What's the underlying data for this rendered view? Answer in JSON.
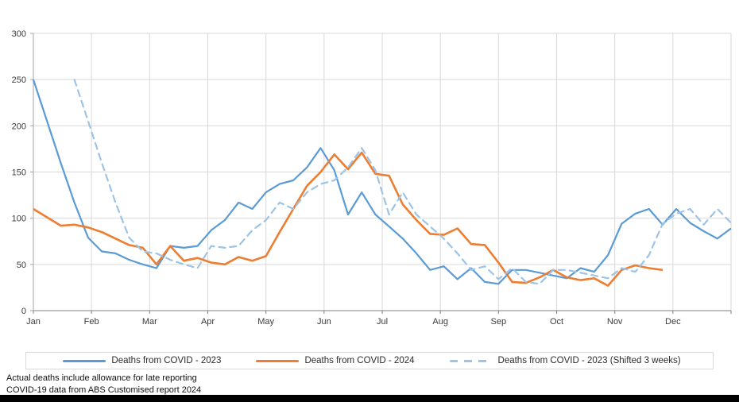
{
  "chart": {
    "footer_lines": [
      "Actual deaths include allowance for late reporting",
      "COVID-19 data from ABS Customised report 2024"
    ]
  },
  "chart_data": {
    "type": "line",
    "title": "",
    "xlabel": "",
    "ylabel": "",
    "x_axis": {
      "tick_labels": [
        "Jan",
        "Feb",
        "Mar",
        "Apr",
        "May",
        "Jun",
        "Jul",
        "Aug",
        "Sep",
        "Oct",
        "Nov",
        "Dec"
      ],
      "unit": "week-of-year",
      "weeks": 52
    },
    "y_axis": {
      "min": 0,
      "max": 300,
      "tick_step": 50,
      "tick_labels": [
        "0",
        "50",
        "100",
        "150",
        "200",
        "250",
        "300"
      ]
    },
    "grid": true,
    "legend_position": "bottom",
    "colors": {
      "series_2023": "#5B9BD5",
      "series_2024": "#ED7D31",
      "series_shifted": "#9DC3E6",
      "gridline": "#D9D9D9",
      "x_axis_line": "#808080",
      "y_axis_line": "#A6A6A6"
    },
    "series": [
      {
        "name": "Deaths from COVID - 2023",
        "style": "solid",
        "color": "#5B9BD5",
        "x_offset_weeks": 0,
        "values": [
          250,
          205,
          160,
          117,
          79,
          64,
          62,
          55,
          50,
          46,
          70,
          68,
          70,
          87,
          98,
          117,
          110,
          128,
          137,
          141,
          155,
          176,
          152,
          104,
          128,
          104,
          91,
          78,
          62,
          44,
          48,
          34,
          46,
          31,
          29,
          44,
          44,
          41,
          38,
          35,
          46,
          42,
          60,
          94,
          105,
          110,
          93,
          110,
          95,
          86,
          78,
          89
        ]
      },
      {
        "name": "Deaths from COVID - 2024",
        "style": "solid",
        "color": "#ED7D31",
        "x_offset_weeks": 0,
        "values": [
          110,
          101,
          92,
          93,
          90,
          85,
          78,
          71,
          68,
          50,
          70,
          54,
          57,
          52,
          50,
          58,
          54,
          59,
          85,
          110,
          135,
          150,
          169,
          153,
          171,
          148,
          146,
          115,
          98,
          83,
          82,
          89,
          72,
          71,
          52,
          31,
          30,
          36,
          44,
          36,
          33,
          35,
          27,
          44,
          49,
          46,
          44
        ]
      },
      {
        "name": "Deaths from COVID - 2023 (Shifted 3 weeks)",
        "style": "dashed",
        "color": "#9DC3E6",
        "x_offset_weeks": 3,
        "values": [
          250,
          205,
          160,
          117,
          79,
          64,
          62,
          55,
          50,
          46,
          70,
          68,
          70,
          87,
          98,
          117,
          110,
          128,
          137,
          141,
          155,
          176,
          152,
          104,
          128,
          104,
          91,
          78,
          62,
          44,
          48,
          34,
          46,
          31,
          29,
          44,
          44,
          41,
          38,
          35,
          46,
          42,
          60,
          94,
          105,
          110,
          93,
          110,
          95
        ]
      }
    ]
  }
}
